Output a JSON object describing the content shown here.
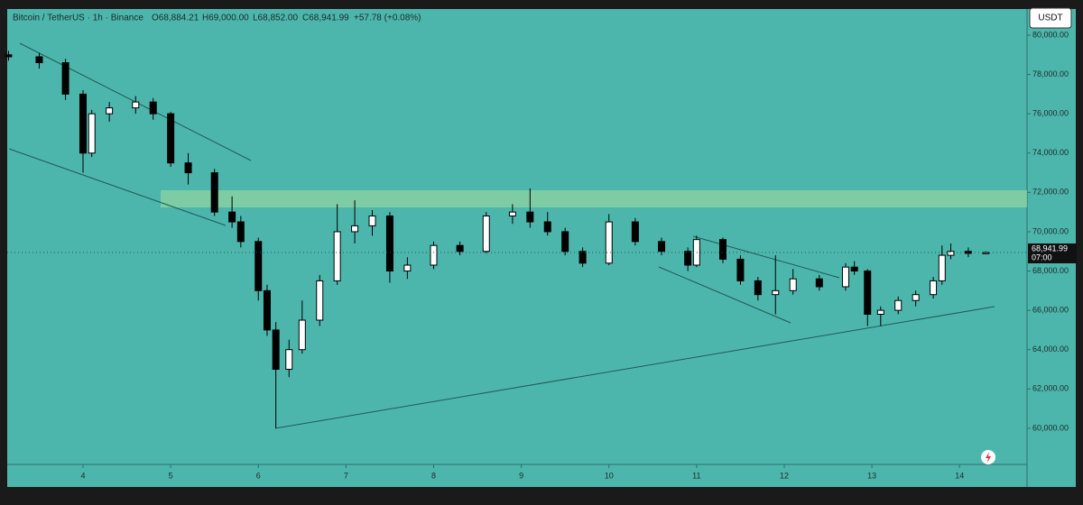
{
  "chart_data": {
    "type": "candlestick",
    "symbol": "Bitcoin / TetherUS · 1h · Binance",
    "ohlc_text": [
      "O68,884.21",
      "H69,000.00",
      "L68,852.00",
      "C68,941.99",
      "+57.78 (+0.08%)"
    ],
    "currency": "USDT",
    "x": [
      3.15,
      3.5,
      3.8,
      4.0,
      4.1,
      4.3,
      4.6,
      4.8,
      5.0,
      5.2,
      5.5,
      5.7,
      5.8,
      6.0,
      6.1,
      6.2,
      6.35,
      6.5,
      6.7,
      6.9,
      7.1,
      7.3,
      7.5,
      7.7,
      8.0,
      8.3,
      8.6,
      8.9,
      9.1,
      9.3,
      9.5,
      9.7,
      10.0,
      10.3,
      10.6,
      10.9,
      11.0,
      11.3,
      11.5,
      11.7,
      11.9,
      12.1,
      12.4,
      12.7,
      12.8,
      12.95,
      13.1,
      13.3,
      13.5,
      13.7,
      13.8,
      13.9,
      14.1,
      14.3
    ],
    "open": [
      79000,
      78900,
      78600,
      77000,
      74000,
      76000,
      76300,
      76600,
      76000,
      73500,
      73000,
      71000,
      70500,
      69500,
      67000,
      65000,
      63000,
      64000,
      65500,
      67500,
      70000,
      70300,
      70800,
      68000,
      68300,
      69300,
      69000,
      70800,
      71000,
      70500,
      70000,
      69000,
      68400,
      70500,
      69500,
      69000,
      68300,
      69600,
      68600,
      67500,
      66800,
      67000,
      67600,
      67200,
      68200,
      68000,
      65800,
      66000,
      66500,
      66800,
      67500,
      68800,
      69000,
      68884.21
    ],
    "high": [
      79200,
      79100,
      78800,
      77200,
      76200,
      76600,
      76900,
      76800,
      76100,
      74000,
      73200,
      71800,
      70800,
      69700,
      67300,
      65400,
      64500,
      66500,
      67800,
      71400,
      71600,
      71100,
      71000,
      68700,
      69500,
      69500,
      71000,
      71400,
      72200,
      71000,
      70200,
      69200,
      70900,
      70700,
      69700,
      69200,
      69800,
      69700,
      68800,
      67700,
      68800,
      68100,
      67800,
      68400,
      68500,
      68100,
      66200,
      66700,
      67000,
      67700,
      69300,
      69400,
      69200,
      69000
    ],
    "low": [
      78700,
      78300,
      76700,
      73000,
      73800,
      75600,
      76000,
      75700,
      73300,
      72400,
      70800,
      70200,
      69200,
      66500,
      64700,
      60000,
      62600,
      63800,
      65200,
      67300,
      69400,
      69800,
      67400,
      67600,
      68100,
      68800,
      68900,
      70400,
      70200,
      69800,
      68800,
      68200,
      68300,
      69300,
      68800,
      68000,
      68200,
      68400,
      67300,
      66500,
      65800,
      66800,
      67000,
      67000,
      67800,
      65200,
      65200,
      65800,
      66200,
      66600,
      67300,
      68600,
      68700,
      68852
    ],
    "close": [
      78900,
      78600,
      77000,
      74000,
      76000,
      76300,
      76600,
      76000,
      73500,
      73000,
      71000,
      70500,
      69500,
      67000,
      65000,
      63000,
      64000,
      65500,
      67500,
      70000,
      70300,
      70800,
      68000,
      68300,
      69300,
      69000,
      70800,
      71000,
      70500,
      70000,
      69000,
      68400,
      70500,
      69500,
      69000,
      68300,
      69600,
      68600,
      67500,
      66800,
      67000,
      67600,
      67200,
      68200,
      68000,
      65800,
      66000,
      66500,
      66800,
      67500,
      68800,
      69000,
      68900,
      68941.99
    ],
    "up_color": "#ffffff",
    "down_color": "#000000",
    "xlim": [
      3.135,
      14.77
    ],
    "xticks": [
      4,
      5,
      6,
      7,
      8,
      9,
      10,
      11,
      12,
      13,
      14
    ],
    "ylim": [
      58160,
      81330
    ],
    "yticks": [
      {
        "value": 60000,
        "label": "60,000.00"
      },
      {
        "value": 62000,
        "label": "62,000.00"
      },
      {
        "value": 64000,
        "label": "64,000.00"
      },
      {
        "value": 66000,
        "label": "66,000.00"
      },
      {
        "value": 68000,
        "label": "68,000.00"
      },
      {
        "value": 70000,
        "label": "70,000.00"
      },
      {
        "value": 72000,
        "label": "72,000.00"
      },
      {
        "value": 74000,
        "label": "74,000.00"
      },
      {
        "value": 76000,
        "label": "76,000.00"
      },
      {
        "value": 78000,
        "label": "78,000.00"
      },
      {
        "value": 80000,
        "label": "80,000.00"
      }
    ],
    "last_price": {
      "value": 68941.99,
      "label": "68,941.99",
      "time": "07:00"
    }
  }
}
